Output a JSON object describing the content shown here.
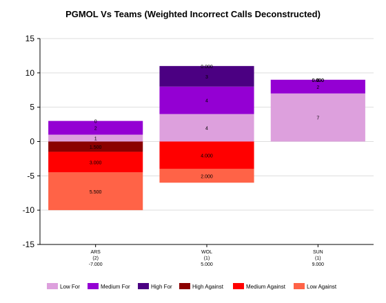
{
  "chart_data": {
    "type": "bar",
    "stacked": true,
    "title": "PGMOL Vs Teams (Weighted Incorrect Calls Deconstructed)",
    "xlabel": "",
    "ylabel": "",
    "ylim": [
      -15,
      15
    ],
    "yticks": [
      15,
      10,
      5,
      0,
      -5,
      -10,
      -15
    ],
    "grid": true,
    "legend_position": "bottom",
    "categories": [
      "ARS",
      "WOL",
      "SUN"
    ],
    "category_sublabels": [
      [
        "(2)",
        "-7.000"
      ],
      [
        "(1)",
        "5.000"
      ],
      [
        "(1)",
        "9.000"
      ]
    ],
    "series": [
      {
        "name": "Low For",
        "color": "#dda0dd",
        "values": [
          1,
          4,
          7
        ],
        "labels": [
          "1",
          "4",
          "7"
        ]
      },
      {
        "name": "Medium For",
        "color": "#9400d3",
        "values": [
          2,
          4,
          2
        ],
        "labels": [
          "2",
          "4",
          "2"
        ]
      },
      {
        "name": "High For",
        "color": "#4b0082",
        "values": [
          0,
          3,
          0
        ],
        "labels": [
          "0",
          "3",
          "0"
        ]
      },
      {
        "name": "High Against",
        "color": "#8b0000",
        "values": [
          -1.5,
          0,
          0
        ],
        "labels": [
          "1.500",
          "0.000",
          "0.000"
        ]
      },
      {
        "name": "Medium Against",
        "color": "#ff0000",
        "values": [
          -3,
          -4,
          0
        ],
        "labels": [
          "3.000",
          "4.000",
          "0.000"
        ]
      },
      {
        "name": "Low Against",
        "color": "#ff6347",
        "values": [
          -5.5,
          -2,
          0
        ],
        "labels": [
          "5.500",
          "2.000",
          "0.000"
        ]
      }
    ]
  }
}
